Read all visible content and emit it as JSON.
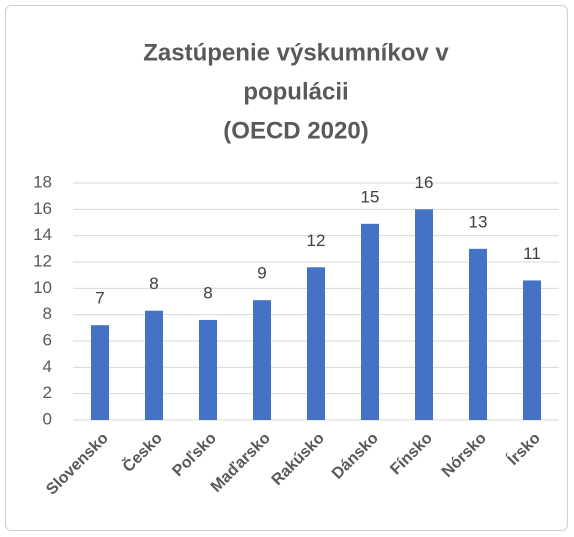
{
  "chart_data": {
    "type": "bar",
    "title": [
      "Zastúpenie výskumníkov v",
      "populácii",
      "(OECD 2020)"
    ],
    "categories": [
      "Slovensko",
      "Česko",
      "Poľsko",
      "Maďarsko",
      "Rakúsko",
      "Dánsko",
      "Fínsko",
      "Nórsko",
      "Írsko"
    ],
    "values": [
      7.2,
      8.3,
      7.6,
      9.1,
      11.6,
      14.9,
      16.0,
      13.0,
      10.6
    ],
    "value_labels": [
      "7",
      "8",
      "8",
      "9",
      "12",
      "15",
      "16",
      "13",
      "11"
    ],
    "color": "#4472c4",
    "ylim": [
      0,
      18
    ],
    "yticks": [
      0,
      2,
      4,
      6,
      8,
      10,
      12,
      14,
      16,
      18
    ],
    "grid": true
  }
}
